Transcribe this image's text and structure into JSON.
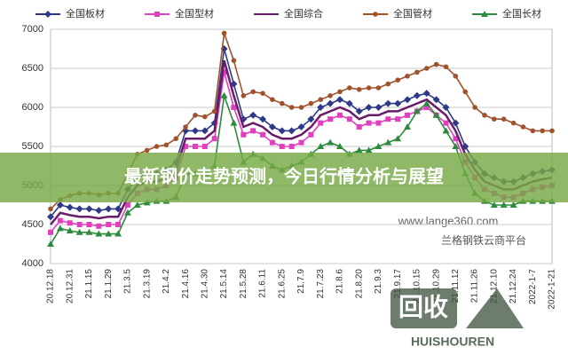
{
  "chart_data": {
    "type": "line",
    "categories": [
      "20.12.18",
      null,
      "20.12.31",
      null,
      "21.1.15",
      null,
      "21.1.29",
      null,
      "21.3.5",
      null,
      "21.3.19",
      null,
      "21.4.2",
      null,
      "21.4.16",
      null,
      "21.4.30",
      null,
      "21.5.14",
      null,
      "21.5.28",
      null,
      "21.6.11",
      null,
      "21.6.25",
      null,
      "21.7.9",
      null,
      "21.7.23",
      null,
      "21.8.6",
      null,
      "21.8.20",
      null,
      "21.9.3",
      null,
      "21.9.17",
      null,
      "21.10.15",
      null,
      "21.10.29",
      null,
      "21.11.12",
      null,
      "21.11.26",
      null,
      "21.12.10",
      null,
      "21.12.24",
      null,
      "2022-1-7",
      null,
      "2022-1-21"
    ],
    "series": [
      {
        "name": "全国板材",
        "color": "#2e3a87",
        "marker": "diamond",
        "values": [
          4600,
          4750,
          4720,
          4700,
          4700,
          4680,
          4700,
          4700,
          4950,
          5100,
          5150,
          5150,
          5200,
          5300,
          5700,
          5700,
          5700,
          5800,
          6750,
          6300,
          5850,
          5900,
          5850,
          5750,
          5700,
          5700,
          5750,
          5850,
          6000,
          6050,
          6100,
          6050,
          5950,
          6000,
          6000,
          6050,
          6050,
          6100,
          6150,
          6180,
          6100,
          6000,
          5800,
          5500,
          5300,
          5150,
          5100,
          5050,
          5050,
          5100,
          5150,
          5180,
          5200
        ]
      },
      {
        "name": "全国型材",
        "color": "#e040c0",
        "marker": "square",
        "values": [
          4400,
          4550,
          4520,
          4500,
          4500,
          4480,
          4500,
          4500,
          4750,
          4900,
          4950,
          4950,
          5000,
          5100,
          5500,
          5500,
          5500,
          5600,
          6450,
          6000,
          5650,
          5700,
          5650,
          5550,
          5500,
          5500,
          5550,
          5650,
          5800,
          5850,
          5900,
          5850,
          5750,
          5800,
          5800,
          5850,
          5850,
          5900,
          5950,
          6000,
          5900,
          5800,
          5600,
          5300,
          5100,
          4950,
          4900,
          4850,
          4850,
          4900,
          4950,
          4980,
          5000
        ]
      },
      {
        "name": "全国综合",
        "color": "#6a1b6a",
        "marker": "none",
        "values": [
          4500,
          4650,
          4620,
          4600,
          4600,
          4580,
          4600,
          4600,
          4850,
          5000,
          5050,
          5050,
          5100,
          5200,
          5600,
          5600,
          5600,
          5700,
          6600,
          6150,
          5750,
          5800,
          5750,
          5650,
          5600,
          5600,
          5650,
          5750,
          5900,
          5950,
          6000,
          5950,
          5850,
          5900,
          5900,
          5950,
          5950,
          6000,
          6050,
          6100,
          6000,
          5900,
          5700,
          5400,
          5200,
          5050,
          5000,
          4950,
          4950,
          5000,
          5050,
          5080,
          5100
        ]
      },
      {
        "name": "全国管材",
        "color": "#a0522d",
        "marker": "circle",
        "values": [
          4700,
          4820,
          4870,
          4900,
          4900,
          4880,
          4900,
          4900,
          5150,
          5400,
          5450,
          5500,
          5520,
          5600,
          5750,
          5900,
          5880,
          5950,
          6950,
          6600,
          6150,
          6200,
          6180,
          6100,
          6050,
          6000,
          6000,
          6050,
          6100,
          6150,
          6200,
          6250,
          6230,
          6250,
          6250,
          6300,
          6350,
          6400,
          6450,
          6500,
          6550,
          6520,
          6400,
          6200,
          6000,
          5900,
          5850,
          5850,
          5800,
          5750,
          5700,
          5700,
          5700
        ]
      },
      {
        "name": "全国长材",
        "color": "#2e8b3e",
        "marker": "triangle",
        "values": [
          4250,
          4450,
          4420,
          4400,
          4400,
          4380,
          4380,
          4380,
          4650,
          4750,
          4780,
          4800,
          4800,
          4850,
          5150,
          5150,
          5150,
          5250,
          6150,
          5800,
          5300,
          5400,
          5350,
          5250,
          5200,
          5250,
          5300,
          5400,
          5500,
          5550,
          5500,
          5400,
          5450,
          5450,
          5500,
          5550,
          5600,
          5750,
          5950,
          6050,
          5900,
          5700,
          5500,
          5150,
          4900,
          4800,
          4750,
          4750,
          4750,
          4800,
          4800,
          4800,
          4800
        ]
      }
    ],
    "ylim": [
      4000,
      7000
    ],
    "yticks": [
      4000,
      4500,
      5000,
      5500,
      6000,
      6500,
      7000
    ],
    "grid": true,
    "annotations": [
      "www.lange360.com",
      "兰格钢铁云商平台"
    ]
  },
  "banner": {
    "title": "最新钢价走势预测，今日行情分析与展望"
  },
  "logo": {
    "text": "回收",
    "subtext": "HUISHOUREN"
  }
}
